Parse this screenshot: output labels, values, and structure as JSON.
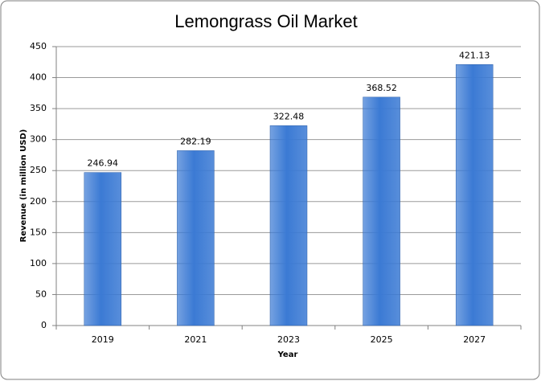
{
  "chart_data": {
    "type": "bar",
    "title": "Lemongrass Oil Market",
    "x_label": "Year",
    "y_label": "Revenue (in million USD)",
    "categories": [
      "2019",
      "2021",
      "2023",
      "2025",
      "2027"
    ],
    "values": [
      246.94,
      282.19,
      322.48,
      368.52,
      421.13
    ],
    "color": "#3b7ad4",
    "ylim": [
      0,
      450
    ],
    "yticks": [
      0,
      50,
      100,
      150,
      200,
      250,
      300,
      350,
      400,
      450
    ],
    "grid": true
  }
}
